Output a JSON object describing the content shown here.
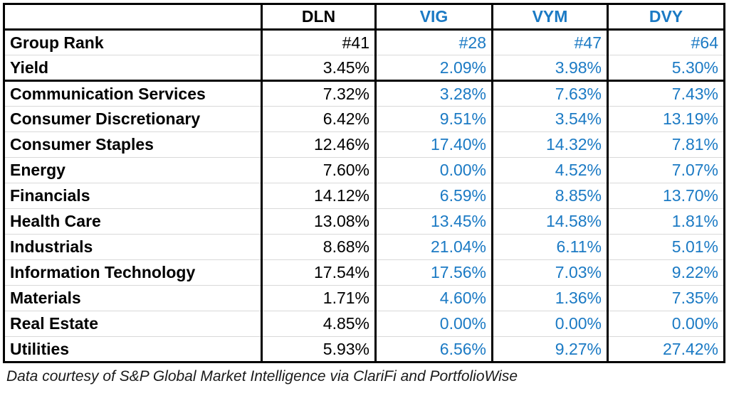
{
  "table": {
    "header": [
      "",
      "DLN",
      "VIG",
      "VYM",
      "DVY"
    ],
    "rows": [
      {
        "label": "Group Rank",
        "values": [
          "#41",
          "#28",
          "#47",
          "#64"
        ],
        "section": "summary"
      },
      {
        "label": "Yield",
        "values": [
          "3.45%",
          "2.09%",
          "3.98%",
          "5.30%"
        ],
        "section": "summary"
      },
      {
        "label": "Communication Services",
        "values": [
          "7.32%",
          "3.28%",
          "7.63%",
          "7.43%"
        ],
        "section": "sectors"
      },
      {
        "label": "Consumer Discretionary",
        "values": [
          "6.42%",
          "9.51%",
          "3.54%",
          "13.19%"
        ],
        "section": "sectors"
      },
      {
        "label": "Consumer Staples",
        "values": [
          "12.46%",
          "17.40%",
          "14.32%",
          "7.81%"
        ],
        "section": "sectors"
      },
      {
        "label": "Energy",
        "values": [
          "7.60%",
          "0.00%",
          "4.52%",
          "7.07%"
        ],
        "section": "sectors"
      },
      {
        "label": "Financials",
        "values": [
          "14.12%",
          "6.59%",
          "8.85%",
          "13.70%"
        ],
        "section": "sectors"
      },
      {
        "label": "Health Care",
        "values": [
          "13.08%",
          "13.45%",
          "14.58%",
          "1.81%"
        ],
        "section": "sectors"
      },
      {
        "label": "Industrials",
        "values": [
          "8.68%",
          "21.04%",
          "6.11%",
          "5.01%"
        ],
        "section": "sectors"
      },
      {
        "label": "Information Technology",
        "values": [
          "17.54%",
          "17.56%",
          "7.03%",
          "9.22%"
        ],
        "section": "sectors"
      },
      {
        "label": "Materials",
        "values": [
          "1.71%",
          "4.60%",
          "1.36%",
          "7.35%"
        ],
        "section": "sectors"
      },
      {
        "label": "Real Estate",
        "values": [
          "4.85%",
          "0.00%",
          "0.00%",
          "0.00%"
        ],
        "section": "sectors"
      },
      {
        "label": "Utilities",
        "values": [
          "5.93%",
          "6.56%",
          "9.27%",
          "27.42%"
        ],
        "section": "sectors"
      }
    ]
  },
  "footer": {
    "text": "Data courtesy of S&P Global Market Intelligence via ClariFi and PortfolioWise"
  },
  "colors": {
    "accent_blue": "#1b7ac4",
    "text_black": "#000000",
    "row_divider": "#d9d9d9",
    "table_border": "#000000"
  },
  "chart_data": {
    "type": "table",
    "title": "ETF comparison: DLN vs VIG vs VYM vs DVY",
    "columns": [
      "DLN",
      "VIG",
      "VYM",
      "DVY"
    ],
    "group_rank": [
      41,
      28,
      47,
      64
    ],
    "yield_pct": [
      3.45,
      2.09,
      3.98,
      5.3
    ],
    "sector_weights_pct": {
      "Communication Services": [
        7.32,
        3.28,
        7.63,
        7.43
      ],
      "Consumer Discretionary": [
        6.42,
        9.51,
        3.54,
        13.19
      ],
      "Consumer Staples": [
        12.46,
        17.4,
        14.32,
        7.81
      ],
      "Energy": [
        7.6,
        0.0,
        4.52,
        7.07
      ],
      "Financials": [
        14.12,
        6.59,
        8.85,
        13.7
      ],
      "Health Care": [
        13.08,
        13.45,
        14.58,
        1.81
      ],
      "Industrials": [
        8.68,
        21.04,
        6.11,
        5.01
      ],
      "Information Technology": [
        17.54,
        17.56,
        7.03,
        9.22
      ],
      "Materials": [
        1.71,
        4.6,
        1.36,
        7.35
      ],
      "Real Estate": [
        4.85,
        0.0,
        0.0,
        0.0
      ],
      "Utilities": [
        5.93,
        6.56,
        9.27,
        27.42
      ]
    },
    "attribution": "Data courtesy of S&P Global Market Intelligence via ClariFi and PortfolioWise"
  }
}
